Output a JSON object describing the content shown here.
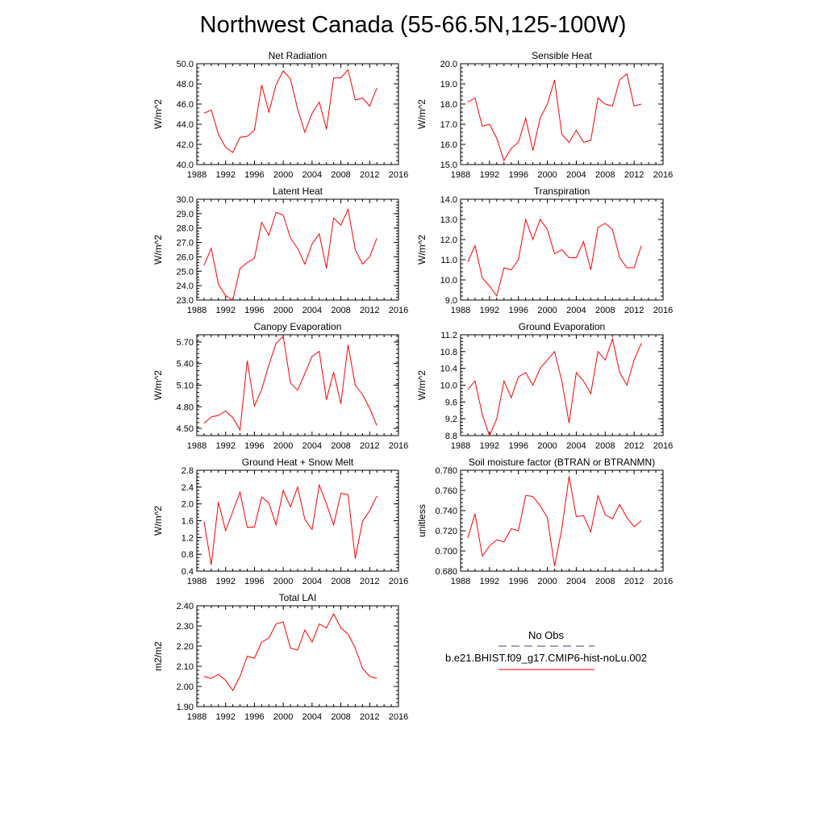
{
  "title": "Northwest Canada (55-66.5N,125-100W)",
  "legend": {
    "obs_label": "No Obs",
    "model_label": "b.e21.BHIST.f09_g17.CMIP6-hist-noLu.002",
    "obs_color": "#3c3c8c",
    "model_color": "#ff0000"
  },
  "series_color": "#ff0000",
  "chart_data": [
    {
      "type": "line",
      "title": "Net Radiation",
      "ylabel": "W/m^2",
      "x": [
        1989,
        1990,
        1991,
        1992,
        1993,
        1994,
        1995,
        1996,
        1997,
        1998,
        1999,
        2000,
        2001,
        2002,
        2003,
        2004,
        2005,
        2006,
        2007,
        2008,
        2009,
        2010,
        2011,
        2012,
        2013
      ],
      "values": [
        45.1,
        45.4,
        43.0,
        41.7,
        41.2,
        42.7,
        42.8,
        43.4,
        47.9,
        45.2,
        47.9,
        49.3,
        48.5,
        45.5,
        43.2,
        45.1,
        46.2,
        43.5,
        48.6,
        48.6,
        49.4,
        46.4,
        46.6,
        45.8,
        47.6
      ],
      "xlim": [
        1988,
        2016
      ],
      "xticks": [
        "1988",
        "1992",
        "1996",
        "2000",
        "2004",
        "2008",
        "2012",
        "2016"
      ],
      "ylim": [
        40.0,
        50.0
      ],
      "yticks": [
        "40.0",
        "42.0",
        "44.0",
        "46.0",
        "48.0",
        "50.0"
      ]
    },
    {
      "type": "line",
      "title": "Sensible Heat",
      "ylabel": "W/m^2",
      "x": [
        1989,
        1990,
        1991,
        1992,
        1993,
        1994,
        1995,
        1996,
        1997,
        1998,
        1999,
        2000,
        2001,
        2002,
        2003,
        2004,
        2005,
        2006,
        2007,
        2008,
        2009,
        2010,
        2011,
        2012,
        2013
      ],
      "values": [
        18.1,
        18.3,
        16.9,
        17.0,
        16.3,
        15.2,
        15.8,
        16.1,
        17.3,
        15.7,
        17.3,
        18.0,
        19.2,
        16.5,
        16.1,
        16.7,
        16.1,
        16.2,
        18.3,
        18.0,
        17.9,
        19.2,
        19.5,
        17.9,
        18.0
      ],
      "xlim": [
        1988,
        2016
      ],
      "xticks": [
        "1988",
        "1992",
        "1996",
        "2000",
        "2004",
        "2008",
        "2012",
        "2016"
      ],
      "ylim": [
        15.0,
        20.0
      ],
      "yticks": [
        "15.0",
        "16.0",
        "17.0",
        "18.0",
        "19.0",
        "20.0"
      ]
    },
    {
      "type": "line",
      "title": "Latent Heat",
      "ylabel": "W/m^2",
      "x": [
        1989,
        1990,
        1991,
        1992,
        1993,
        1994,
        1995,
        1996,
        1997,
        1998,
        1999,
        2000,
        2001,
        2002,
        2003,
        2004,
        2005,
        2006,
        2007,
        2008,
        2009,
        2010,
        2011,
        2012,
        2013
      ],
      "values": [
        25.4,
        26.6,
        24.1,
        23.3,
        23.0,
        25.2,
        25.6,
        25.9,
        28.4,
        27.5,
        29.1,
        28.9,
        27.3,
        26.6,
        25.5,
        26.9,
        27.6,
        25.2,
        28.7,
        28.2,
        29.3,
        26.5,
        25.5,
        26.0,
        27.3
      ],
      "xlim": [
        1988,
        2016
      ],
      "xticks": [
        "1988",
        "1992",
        "1996",
        "2000",
        "2004",
        "2008",
        "2012",
        "2016"
      ],
      "ylim": [
        23.0,
        30.0
      ],
      "yticks": [
        "23.0",
        "24.0",
        "25.0",
        "26.0",
        "27.0",
        "28.0",
        "29.0",
        "30.0"
      ]
    },
    {
      "type": "line",
      "title": "Transpiration",
      "ylabel": "W/m^2",
      "x": [
        1989,
        1990,
        1991,
        1992,
        1993,
        1994,
        1995,
        1996,
        1997,
        1998,
        1999,
        2000,
        2001,
        2002,
        2003,
        2004,
        2005,
        2006,
        2007,
        2008,
        2009,
        2010,
        2011,
        2012,
        2013
      ],
      "values": [
        10.9,
        11.7,
        10.1,
        9.7,
        9.2,
        10.6,
        10.5,
        11.0,
        13.0,
        12.0,
        13.0,
        12.5,
        11.3,
        11.5,
        11.1,
        11.1,
        11.9,
        10.5,
        12.6,
        12.8,
        12.5,
        11.1,
        10.6,
        10.6,
        11.7
      ],
      "xlim": [
        1988,
        2016
      ],
      "xticks": [
        "1988",
        "1992",
        "1996",
        "2000",
        "2004",
        "2008",
        "2012",
        "2016"
      ],
      "ylim": [
        9.0,
        14.0
      ],
      "yticks": [
        "9.0",
        "10.0",
        "11.0",
        "12.0",
        "13.0",
        "14.0"
      ]
    },
    {
      "type": "line",
      "title": "Canopy Evaporation",
      "ylabel": "W/m^2",
      "x": [
        1989,
        1990,
        1991,
        1992,
        1993,
        1994,
        1995,
        1996,
        1997,
        1998,
        1999,
        2000,
        2001,
        2002,
        2003,
        2004,
        2005,
        2006,
        2007,
        2008,
        2009,
        2010,
        2011,
        2012,
        2013
      ],
      "values": [
        4.57,
        4.66,
        4.68,
        4.74,
        4.65,
        4.48,
        5.44,
        4.81,
        5.04,
        5.38,
        5.68,
        5.78,
        5.13,
        5.03,
        5.26,
        5.5,
        5.57,
        4.9,
        5.28,
        4.84,
        5.66,
        5.1,
        4.97,
        4.78,
        4.54
      ],
      "xlim": [
        1988,
        2016
      ],
      "xticks": [
        "1988",
        "1992",
        "1996",
        "2000",
        "2004",
        "2008",
        "2012",
        "2016"
      ],
      "ylim": [
        4.4,
        5.8
      ],
      "yticks": [
        "4.50",
        "4.80",
        "5.10",
        "5.40",
        "5.70"
      ]
    },
    {
      "type": "line",
      "title": "Ground Evaporation",
      "ylabel": "W/m^2",
      "x": [
        1989,
        1990,
        1991,
        1992,
        1993,
        1994,
        1995,
        1996,
        1997,
        1998,
        1999,
        2000,
        2001,
        2002,
        2003,
        2004,
        2005,
        2006,
        2007,
        2008,
        2009,
        2010,
        2011,
        2012,
        2013
      ],
      "values": [
        9.9,
        10.1,
        9.3,
        8.8,
        9.2,
        10.1,
        9.7,
        10.2,
        10.3,
        10.0,
        10.4,
        10.6,
        10.8,
        10.1,
        9.1,
        10.3,
        10.1,
        9.8,
        10.8,
        10.6,
        11.1,
        10.3,
        10.0,
        10.6,
        11.0
      ],
      "xlim": [
        1988,
        2016
      ],
      "xticks": [
        "1988",
        "1992",
        "1996",
        "2000",
        "2004",
        "2008",
        "2012",
        "2016"
      ],
      "ylim": [
        8.8,
        11.2
      ],
      "yticks": [
        "8.8",
        "9.2",
        "9.6",
        "10.0",
        "10.4",
        "10.8",
        "11.2"
      ]
    },
    {
      "type": "line",
      "title": "Ground Heat + Snow Melt",
      "ylabel": "W/m^2",
      "x": [
        1989,
        1990,
        1991,
        1992,
        1993,
        1994,
        1995,
        1996,
        1997,
        1998,
        1999,
        2000,
        2001,
        2002,
        2003,
        2004,
        2005,
        2006,
        2007,
        2008,
        2009,
        2010,
        2011,
        2012,
        2013
      ],
      "values": [
        1.58,
        0.55,
        2.04,
        1.36,
        1.82,
        2.28,
        1.44,
        1.45,
        2.16,
        2.02,
        1.5,
        2.32,
        1.93,
        2.4,
        1.63,
        1.39,
        2.45,
        2.0,
        1.5,
        2.25,
        2.22,
        0.7,
        1.58,
        1.84,
        2.19
      ],
      "xlim": [
        1988,
        2016
      ],
      "xticks": [
        "1988",
        "1992",
        "1996",
        "2000",
        "2004",
        "2008",
        "2012",
        "2016"
      ],
      "ylim": [
        0.4,
        2.8
      ],
      "yticks": [
        "0.4",
        "0.8",
        "1.2",
        "1.6",
        "2.0",
        "2.4",
        "2.8"
      ]
    },
    {
      "type": "line",
      "title": "Soil moisture factor (BTRAN or BTRANMN)",
      "ylabel": "unitless",
      "x": [
        1989,
        1990,
        1991,
        1992,
        1993,
        1994,
        1995,
        1996,
        1997,
        1998,
        1999,
        2000,
        2001,
        2002,
        2003,
        2004,
        2005,
        2006,
        2007,
        2008,
        2009,
        2010,
        2011,
        2012,
        2013
      ],
      "values": [
        0.713,
        0.737,
        0.695,
        0.705,
        0.711,
        0.709,
        0.722,
        0.72,
        0.755,
        0.754,
        0.745,
        0.733,
        0.685,
        0.722,
        0.774,
        0.734,
        0.735,
        0.719,
        0.755,
        0.736,
        0.732,
        0.746,
        0.733,
        0.724,
        0.73
      ],
      "xlim": [
        1988,
        2016
      ],
      "xticks": [
        "1988",
        "1992",
        "1996",
        "2000",
        "2004",
        "2008",
        "2012",
        "2016"
      ],
      "ylim": [
        0.68,
        0.78
      ],
      "yticks": [
        "0.680",
        "0.700",
        "0.720",
        "0.740",
        "0.760",
        "0.780"
      ]
    },
    {
      "type": "line",
      "title": "Total LAI",
      "ylabel": "m2/m2",
      "x": [
        1989,
        1990,
        1991,
        1992,
        1993,
        1994,
        1995,
        1996,
        1997,
        1998,
        1999,
        2000,
        2001,
        2002,
        2003,
        2004,
        2005,
        2006,
        2007,
        2008,
        2009,
        2010,
        2011,
        2012,
        2013
      ],
      "values": [
        2.05,
        2.04,
        2.06,
        2.03,
        1.98,
        2.05,
        2.15,
        2.14,
        2.22,
        2.24,
        2.31,
        2.32,
        2.19,
        2.18,
        2.28,
        2.22,
        2.31,
        2.29,
        2.36,
        2.29,
        2.26,
        2.19,
        2.09,
        2.05,
        2.04
      ],
      "xlim": [
        1988,
        2016
      ],
      "xticks": [
        "1988",
        "1992",
        "1996",
        "2000",
        "2004",
        "2008",
        "2012",
        "2016"
      ],
      "ylim": [
        1.9,
        2.4
      ],
      "yticks": [
        "1.90",
        "2.00",
        "2.10",
        "2.20",
        "2.30",
        "2.40"
      ]
    }
  ]
}
